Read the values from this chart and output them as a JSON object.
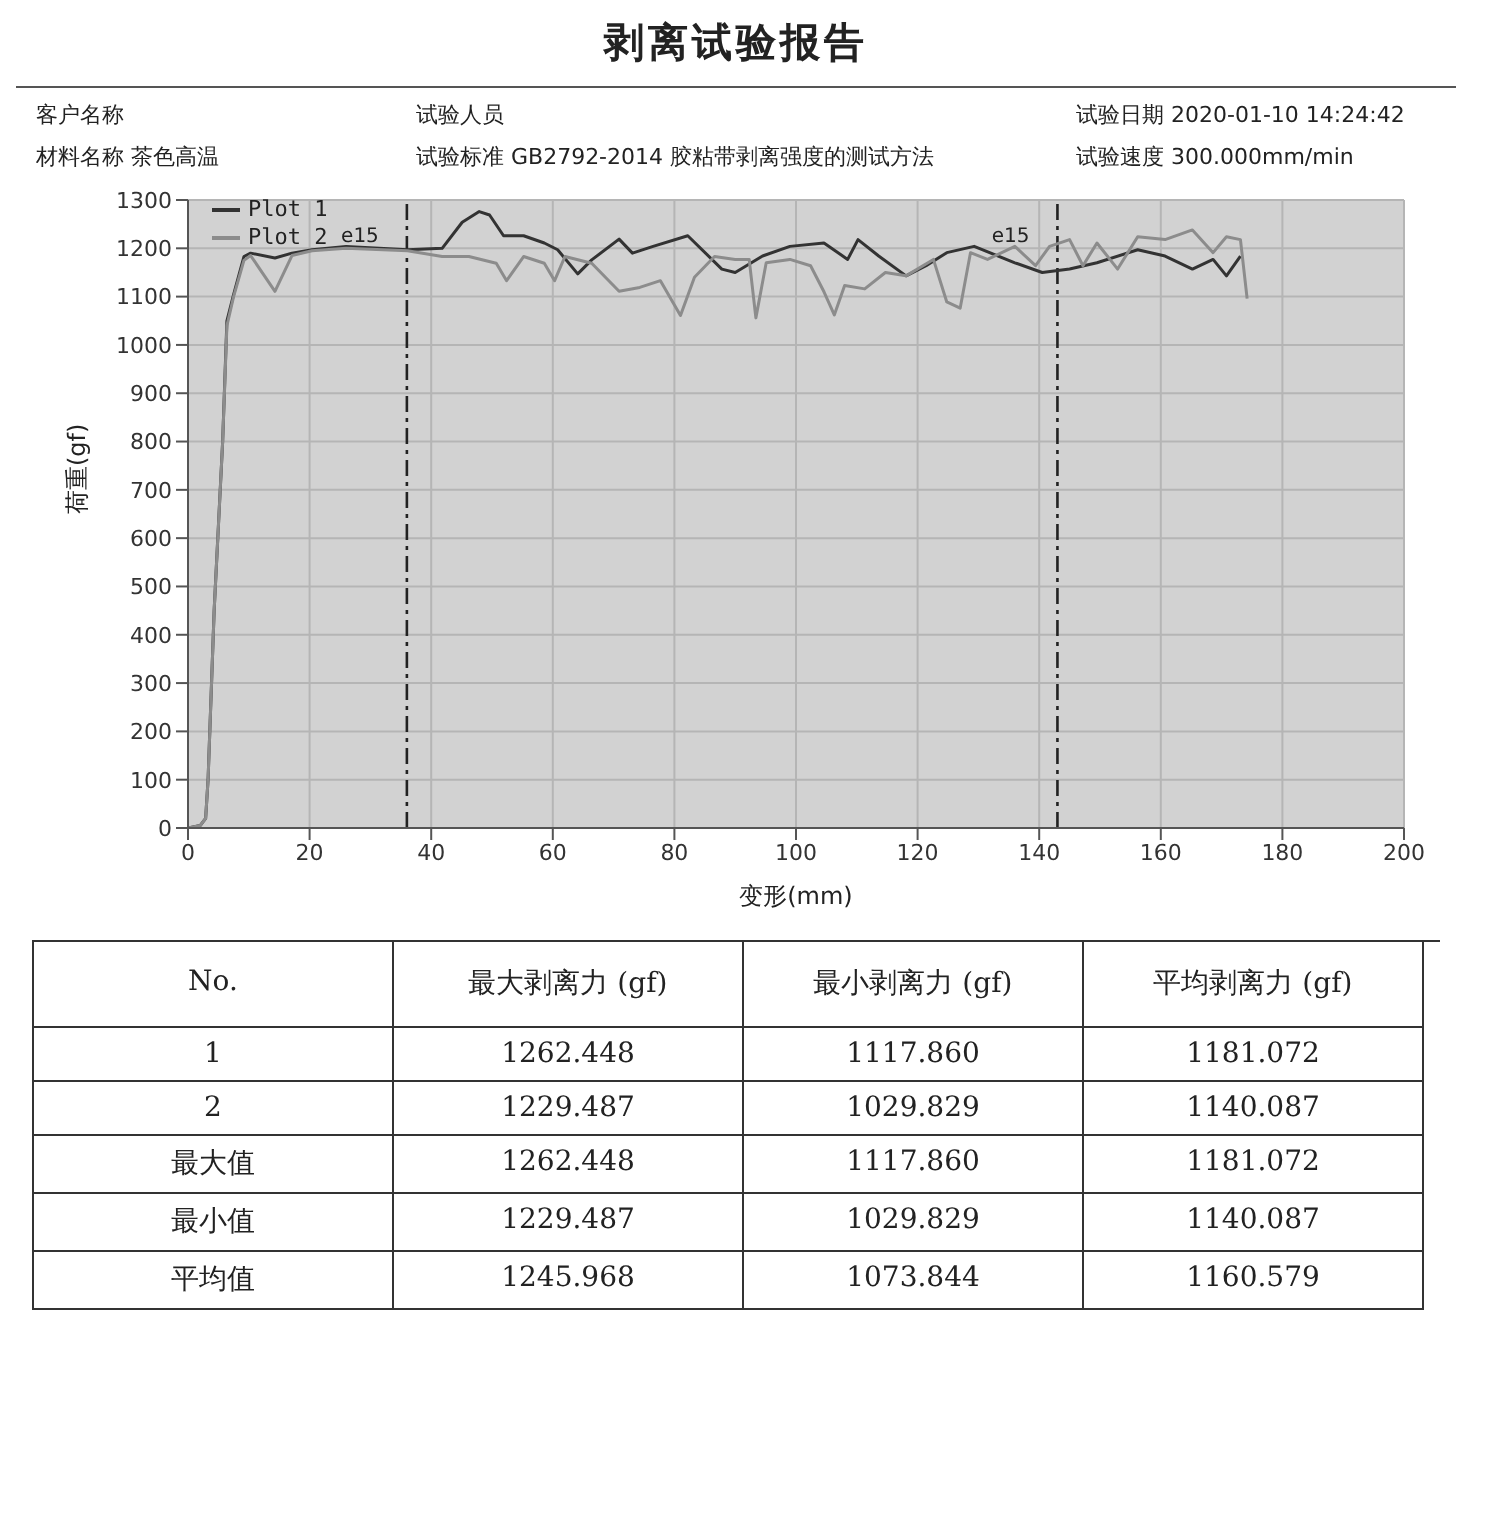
{
  "chart_data": {
    "type": "line",
    "title": "剥离试验报告",
    "xlabel": "变形(mm)",
    "ylabel": "荷重(gf)",
    "xlim": [
      0,
      200
    ],
    "xticks": [
      0,
      20,
      40,
      60,
      80,
      100,
      120,
      140,
      160,
      180,
      200
    ],
    "ylim": [
      0,
      1300
    ],
    "yticks": [
      0,
      100,
      200,
      300,
      400,
      500,
      600,
      700,
      800,
      900,
      1000,
      1100,
      1200,
      1300
    ],
    "grid": true,
    "legend": "top left",
    "line_style": "solid",
    "ref_lines": [
      {
        "axis": "x",
        "value": 36,
        "label": "e15",
        "color": "#222222",
        "line_style": "dashed"
      },
      {
        "axis": "x",
        "value": 143,
        "label": "e15",
        "color": "#222222",
        "line_style": "dashed"
      }
    ],
    "series": [
      {
        "name": "Plot 1",
        "color": "#333333",
        "x": [
          0,
          2,
          2.9,
          3.3,
          4.3,
          5.7,
          6.4,
          7.5,
          9.2,
          10.3,
          14.3,
          17.1,
          20.4,
          26,
          36.1,
          41.8,
          45.1,
          47.9,
          49.6,
          51.9,
          55.2,
          58.6,
          60.8,
          64.1,
          66.4,
          70.9,
          73.1,
          76.5,
          82.2,
          87.8,
          90,
          94.5,
          99,
          104.6,
          108.5,
          110.2,
          113.6,
          118.1,
          121.4,
          124.8,
          129.3,
          136,
          140.5,
          145,
          149.5,
          156.2,
          160.7,
          165.2,
          168.6,
          170.8,
          173.1
        ],
        "values": [
          0,
          5,
          20,
          100,
          450,
          800,
          1050,
          1104,
          1183,
          1190,
          1180,
          1190,
          1197,
          1204,
          1197,
          1200,
          1254,
          1276,
          1269,
          1226,
          1226,
          1211,
          1197,
          1147,
          1176,
          1219,
          1190,
          1204,
          1226,
          1157,
          1150,
          1184,
          1204,
          1211,
          1177,
          1218,
          1184,
          1143,
          1164,
          1191,
          1204,
          1170,
          1150,
          1157,
          1170,
          1197,
          1184,
          1157,
          1177,
          1143,
          1184
        ]
      },
      {
        "name": "Plot 2",
        "color": "#8c8c8c",
        "x": [
          0,
          2,
          2.9,
          3.3,
          4.3,
          5.7,
          6.4,
          7.5,
          9.2,
          10.3,
          14.3,
          17.1,
          20.4,
          26,
          36.1,
          41.8,
          46.2,
          50.7,
          52.4,
          55.2,
          58.6,
          60.3,
          62,
          66.4,
          70.9,
          74.3,
          77.7,
          81,
          83.3,
          86.6,
          90,
          92.3,
          93.4,
          95.1,
          99,
          102.4,
          104.6,
          106.3,
          108,
          111.3,
          114.7,
          118.1,
          122.6,
          124.8,
          127,
          128.7,
          131.5,
          136,
          139.4,
          141.7,
          145,
          147.2,
          149.5,
          152.9,
          156.2,
          160.7,
          165.2,
          168.6,
          170.8,
          173.1,
          174.2
        ],
        "values": [
          0,
          5,
          20,
          100,
          450,
          800,
          1040,
          1100,
          1175,
          1185,
          1111,
          1185,
          1195,
          1200,
          1195,
          1183,
          1183,
          1169,
          1133,
          1183,
          1169,
          1133,
          1183,
          1169,
          1111,
          1119,
          1133,
          1061,
          1140,
          1183,
          1177,
          1177,
          1056,
          1170,
          1177,
          1164,
          1110,
          1062,
          1123,
          1116,
          1150,
          1143,
          1177,
          1089,
          1076,
          1191,
          1177,
          1204,
          1164,
          1204,
          1218,
          1164,
          1211,
          1157,
          1224,
          1218,
          1238,
          1191,
          1224,
          1218,
          1096
        ]
      }
    ],
    "annotations": [
      "客户名称",
      "试验人员",
      "试验日期   2020-01-10 14:24:42",
      "材料名称   茶色高温",
      "试验标准   GB2792-2014 胶粘带剥离强度的测试方法",
      "试验速度   300.000mm/min",
      "No.",
      "最大剥离力 (gf)",
      "最小剥离力 (gf)",
      "平均剥离力 (gf)",
      "1",
      "1262.448",
      "1117.860",
      "1181.072",
      "2",
      "1229.487",
      "1029.829",
      "1140.087",
      "最大值",
      "1262.448",
      "1117.860",
      "1181.072",
      "最小值",
      "1229.487",
      "1029.829",
      "1140.087",
      "平均值",
      "1245.968",
      "1073.844",
      "1160.579"
    ]
  }
}
